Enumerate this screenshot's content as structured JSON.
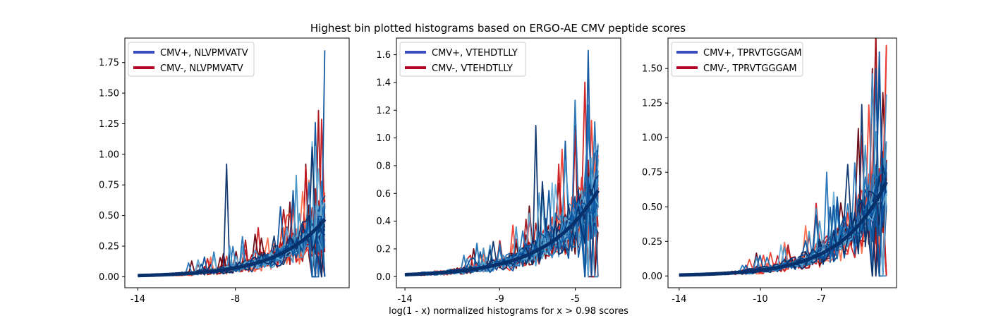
{
  "figure": {
    "title": "Highest bin plotted histograms based on ERGO-AE CMV peptide scores",
    "xlabel": "log(1 - x) normalized histograms for x > 0.98 scores"
  },
  "colors": {
    "legend_pos": "#3a4cc0",
    "legend_neg": "#b40426",
    "blues": [
      "#08306b",
      "#08519c",
      "#2171b5",
      "#4292c6",
      "#6baed6"
    ],
    "reds": [
      "#67000d",
      "#a50f15",
      "#cb181d",
      "#ef3b2c",
      "#fb6a4a"
    ]
  },
  "chart_data": [
    {
      "type": "line",
      "xlim": [
        -14.8,
        -1.0
      ],
      "ylim": [
        -0.09,
        1.95
      ],
      "xticks": [
        -14,
        -8
      ],
      "xtick_labels": [
        "-14",
        "-8"
      ],
      "yticks": [
        0.0,
        0.25,
        0.5,
        0.75,
        1.0,
        1.25,
        1.5,
        1.75
      ],
      "ytick_labels": [
        "0.00",
        "0.25",
        "0.50",
        "0.75",
        "1.00",
        "1.25",
        "1.50",
        "1.75"
      ],
      "legend_position": "upper left",
      "legend": [
        "CMV+, NLVPMVATV",
        "CMV-, NLVPMVATV"
      ],
      "x_range": [
        -14,
        -2.5
      ],
      "curve": {
        "base": 0.47,
        "rate": 0.34
      },
      "spikes": [
        [
          -8.6,
          0.92
        ],
        [
          -3.6,
          0.92
        ],
        [
          -2.55,
          1.85
        ],
        [
          -3.1,
          0.72
        ],
        [
          -2.75,
          0.78
        ]
      ],
      "series": [
        {
          "group": "positive",
          "annotation": "blue family (many overlapping curves)"
        },
        {
          "group": "negative",
          "annotation": "red family (many overlapping curves)"
        }
      ]
    },
    {
      "type": "line",
      "xlim": [
        -14.45,
        -2.6
      ],
      "ylim": [
        -0.08,
        1.72
      ],
      "xticks": [
        -14,
        -9,
        -5
      ],
      "xtick_labels": [
        "-14",
        "-9",
        "-5"
      ],
      "yticks": [
        0.0,
        0.2,
        0.4,
        0.6,
        0.8,
        1.0,
        1.2,
        1.4,
        1.6
      ],
      "ytick_labels": [
        "0.0",
        "0.2",
        "0.4",
        "0.6",
        "0.8",
        "1.0",
        "1.2",
        "1.4",
        "1.6"
      ],
      "legend_position": "upper left",
      "legend": [
        "CMV+, VTEHDTLLY",
        "CMV-, VTEHDTLLY"
      ],
      "x_range": [
        -14,
        -3.8
      ],
      "curve": {
        "base": 0.62,
        "rate": 0.37
      },
      "spikes": [
        [
          -7.1,
          1.09
        ],
        [
          -5.0,
          1.09
        ],
        [
          -4.4,
          1.63
        ],
        [
          -4.25,
          0.84
        ],
        [
          -3.85,
          0.85
        ]
      ],
      "series": [
        {
          "group": "positive",
          "annotation": "blue family (many overlapping curves)"
        },
        {
          "group": "negative",
          "annotation": "red family (many overlapping curves)"
        }
      ]
    },
    {
      "type": "line",
      "xlim": [
        -14.55,
        -3.3
      ],
      "ylim": [
        -0.085,
        1.72
      ],
      "xticks": [
        -14,
        -10,
        -7
      ],
      "xtick_labels": [
        "-14",
        "-10",
        "-7"
      ],
      "yticks": [
        0.0,
        0.25,
        0.5,
        0.75,
        1.0,
        1.25,
        1.5
      ],
      "ytick_labels": [
        "0.00",
        "0.25",
        "0.50",
        "0.75",
        "1.00",
        "1.25",
        "1.50"
      ],
      "legend_position": "upper left",
      "legend": [
        "CMV+, TPRVTGGGAM",
        "CMV-, TPRVTGGGAM"
      ],
      "x_range": [
        -14,
        -3.8
      ],
      "curve": {
        "base": 0.68,
        "rate": 0.45
      },
      "spikes": [
        [
          -5.0,
          1.24
        ],
        [
          -4.55,
          1.5
        ],
        [
          -4.25,
          1.5
        ],
        [
          -3.85,
          1.66
        ],
        [
          -6.8,
          0.75
        ]
      ],
      "series": [
        {
          "group": "positive",
          "annotation": "blue family (many overlapping curves)"
        },
        {
          "group": "negative",
          "annotation": "red family (many overlapping curves)"
        }
      ]
    }
  ]
}
